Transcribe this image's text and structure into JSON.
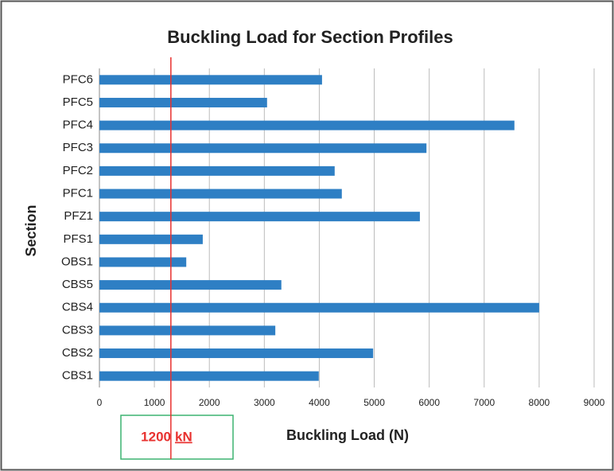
{
  "chart_data": {
    "type": "bar",
    "orientation": "horizontal",
    "title": "Buckling Load for Section Profiles",
    "x_label": "Buckling Load (N)",
    "y_label": "Section",
    "categories": [
      "PFC6",
      "PFC5",
      "PFC4",
      "PFC3",
      "PFC2",
      "PFC1",
      "PFZ1",
      "PFS1",
      "OBS1",
      "CBS5",
      "CBS4",
      "CBS3",
      "CBS2",
      "CBS1"
    ],
    "values": [
      4050,
      3050,
      7550,
      5950,
      4280,
      4410,
      5830,
      1880,
      1580,
      3310,
      8000,
      3200,
      4980,
      3990
    ],
    "color": "#2e7fc4",
    "xlim": [
      0,
      9000
    ],
    "xticks": [
      0,
      1000,
      2000,
      3000,
      4000,
      5000,
      6000,
      7000,
      8000,
      9000
    ],
    "grid": true,
    "reference_line": {
      "value": 1300,
      "color": "#e8312f"
    },
    "annotation": {
      "value": "1200",
      "unit": "kN"
    }
  }
}
